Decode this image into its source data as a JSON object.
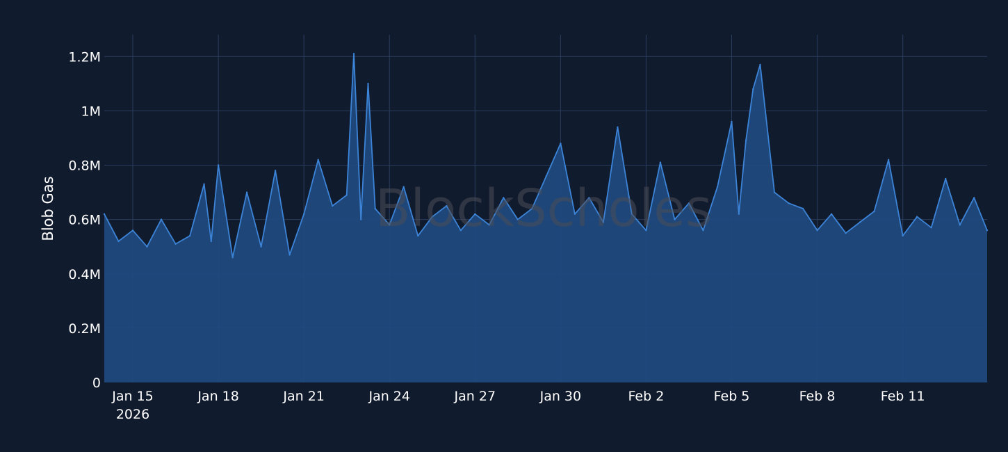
{
  "chart_data": {
    "type": "area",
    "title": "",
    "xlabel": "",
    "ylabel": "Blob Gas",
    "watermark": "BlockScholes",
    "grid": true,
    "legend": "none",
    "x_range": [
      "2026-01-14 00:00",
      "2026-02-13 23:00"
    ],
    "ylim": [
      0,
      1280000
    ],
    "y_ticks": [
      {
        "value": 0,
        "label": "0"
      },
      {
        "value": 200000,
        "label": "0.2M"
      },
      {
        "value": 400000,
        "label": "0.4M"
      },
      {
        "value": 600000,
        "label": "0.6M"
      },
      {
        "value": 800000,
        "label": "0.8M"
      },
      {
        "value": 1000000,
        "label": "1M"
      },
      {
        "value": 1200000,
        "label": "1.2M"
      }
    ],
    "x_ticks": [
      {
        "date": "2026-01-15",
        "label": "Jan 15",
        "sublabel": "2026"
      },
      {
        "date": "2026-01-18",
        "label": "Jan 18"
      },
      {
        "date": "2026-01-21",
        "label": "Jan 21"
      },
      {
        "date": "2026-01-24",
        "label": "Jan 24"
      },
      {
        "date": "2026-01-27",
        "label": "Jan 27"
      },
      {
        "date": "2026-01-30",
        "label": "Jan 30"
      },
      {
        "date": "2026-02-02",
        "label": "Feb 2"
      },
      {
        "date": "2026-02-05",
        "label": "Feb 5"
      },
      {
        "date": "2026-02-08",
        "label": "Feb 8"
      },
      {
        "date": "2026-02-11",
        "label": "Feb 11"
      }
    ],
    "colors": {
      "line": "#3c84d8",
      "fill": "#1f4a80",
      "grid": "#2b3d5d",
      "background": "#111b2e",
      "text": "#ffffff"
    },
    "series": [
      {
        "x": [
          "2026-01-14 00:00",
          "2026-01-14 12:00",
          "2026-01-15 00:00",
          "2026-01-15 12:00",
          "2026-01-16 00:00",
          "2026-01-16 12:00",
          "2026-01-17 00:00",
          "2026-01-17 12:00",
          "2026-01-17 18:00",
          "2026-01-18 00:00",
          "2026-01-18 12:00",
          "2026-01-19 00:00",
          "2026-01-19 12:00",
          "2026-01-20 00:00",
          "2026-01-20 12:00",
          "2026-01-21 00:00",
          "2026-01-21 12:00",
          "2026-01-22 00:00",
          "2026-01-22 12:00",
          "2026-01-22 18:00",
          "2026-01-23 00:00",
          "2026-01-23 06:00",
          "2026-01-23 12:00",
          "2026-01-24 00:00",
          "2026-01-24 12:00",
          "2026-01-25 00:00",
          "2026-01-25 12:00",
          "2026-01-26 00:00",
          "2026-01-26 12:00",
          "2026-01-27 00:00",
          "2026-01-27 12:00",
          "2026-01-28 00:00",
          "2026-01-28 12:00",
          "2026-01-29 00:00",
          "2026-01-29 12:00",
          "2026-01-30 00:00",
          "2026-01-30 12:00",
          "2026-01-31 00:00",
          "2026-01-31 12:00",
          "2026-02-01 00:00",
          "2026-02-01 12:00",
          "2026-02-02 00:00",
          "2026-02-02 12:00",
          "2026-02-03 00:00",
          "2026-02-03 12:00",
          "2026-02-04 00:00",
          "2026-02-04 12:00",
          "2026-02-05 00:00",
          "2026-02-05 06:00",
          "2026-02-05 12:00",
          "2026-02-05 18:00",
          "2026-02-06 00:00",
          "2026-02-06 12:00",
          "2026-02-07 00:00",
          "2026-02-07 12:00",
          "2026-02-08 00:00",
          "2026-02-08 12:00",
          "2026-02-09 00:00",
          "2026-02-09 12:00",
          "2026-02-10 00:00",
          "2026-02-10 12:00",
          "2026-02-11 00:00",
          "2026-02-11 12:00",
          "2026-02-12 00:00",
          "2026-02-12 12:00",
          "2026-02-13 00:00",
          "2026-02-13 12:00",
          "2026-02-13 23:00"
        ],
        "y": [
          620000,
          520000,
          560000,
          500000,
          600000,
          510000,
          540000,
          730000,
          520000,
          800000,
          460000,
          700000,
          500000,
          780000,
          470000,
          620000,
          820000,
          650000,
          690000,
          1210000,
          600000,
          1100000,
          640000,
          580000,
          720000,
          540000,
          610000,
          650000,
          560000,
          620000,
          580000,
          680000,
          600000,
          640000,
          760000,
          880000,
          620000,
          680000,
          590000,
          940000,
          620000,
          560000,
          810000,
          600000,
          660000,
          560000,
          720000,
          960000,
          620000,
          890000,
          1080000,
          1170000,
          700000,
          660000,
          640000,
          560000,
          620000,
          550000,
          590000,
          630000,
          820000,
          540000,
          610000,
          570000,
          750000,
          580000,
          680000,
          560000
        ]
      }
    ]
  }
}
